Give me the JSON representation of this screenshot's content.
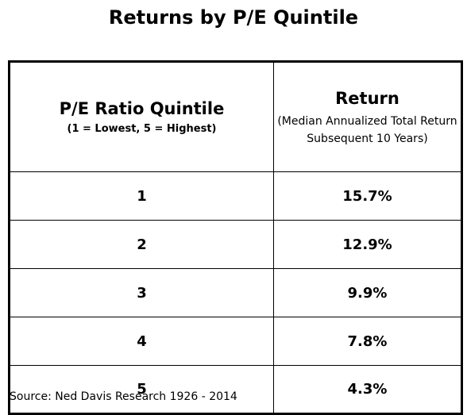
{
  "title": "Returns by P/E Quintile",
  "table": {
    "header": {
      "col1_title": "P/E Ratio Quintile",
      "col1_subtitle": "(1 = Lowest, 5 = Highest)",
      "col2_title": "Return",
      "col2_subtitle": "(Median Annualized Total Return Subsequent 10 Years)"
    },
    "rows": [
      {
        "quintile": "1",
        "return": "15.7%"
      },
      {
        "quintile": "2",
        "return": "12.9%"
      },
      {
        "quintile": "3",
        "return": "9.9%"
      },
      {
        "quintile": "4",
        "return": "7.8%"
      },
      {
        "quintile": "5",
        "return": "4.3%"
      }
    ]
  },
  "source": "Source: Ned Davis Research 1926 - 2014"
}
